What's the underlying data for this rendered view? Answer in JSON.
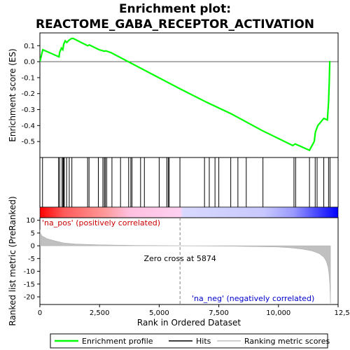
{
  "chart_data": {
    "type": "line",
    "title": "Enrichment plot:",
    "subtitle": "REACTOME_GABA_RECEPTOR_ACTIVATION",
    "top_panel": {
      "ylabel": "Enrichment score (ES)",
      "ylim": [
        -0.6,
        0.18
      ],
      "yticks": [
        0.1,
        0.0,
        -0.1,
        -0.2,
        -0.3,
        -0.4,
        -0.5
      ],
      "ytick_labels": [
        "0.1",
        "0.0",
        "-0.1",
        "-0.2",
        "-0.3",
        "-0.4",
        "-0.5"
      ],
      "series": [
        {
          "name": "Enrichment profile",
          "color": "#00ff00",
          "x": [
            0,
            120,
            800,
            830,
            900,
            960,
            1000,
            1060,
            1130,
            1220,
            1330,
            1400,
            2000,
            2070,
            2480,
            2640,
            2700,
            2760,
            2800,
            3000,
            5874,
            7000,
            8000,
            9300,
            10600,
            10700,
            11300,
            11500,
            11550,
            11650,
            11900,
            12050,
            12100,
            12130,
            12150,
            12180
          ],
          "y": [
            0.0,
            0.075,
            0.03,
            0.06,
            0.085,
            0.075,
            0.11,
            0.13,
            0.12,
            0.135,
            0.145,
            0.145,
            0.1,
            0.105,
            0.075,
            0.068,
            0.065,
            0.068,
            0.066,
            0.055,
            -0.17,
            -0.255,
            -0.325,
            -0.43,
            -0.525,
            -0.515,
            -0.555,
            -0.5,
            -0.44,
            -0.4,
            -0.355,
            -0.365,
            -0.25,
            -0.125,
            0.0,
            0.0
          ]
        }
      ]
    },
    "hits": {
      "name": "Hits",
      "positions": [
        110,
        780,
        830,
        930,
        970,
        1000,
        1020,
        1120,
        1230,
        1340,
        2000,
        2060,
        2450,
        2640,
        2700,
        2740,
        2800,
        3020,
        3380,
        3720,
        3810,
        3860,
        4220,
        4380,
        5000,
        5320,
        5380,
        5420,
        5870,
        6900,
        7100,
        7340,
        7500,
        8000,
        8300,
        8650,
        9350,
        10650,
        10720,
        11300,
        11540,
        11620,
        11900,
        12100,
        12160
      ]
    },
    "bottom_panel": {
      "ylabel": "Ranked list metric (PreRanked)",
      "xlabel": "Rank in Ordered Dataset",
      "ylim": [
        -23,
        11
      ],
      "yticks": [
        10,
        5,
        0,
        -5,
        -10,
        -15,
        -20
      ],
      "ytick_labels": [
        "10",
        "5",
        "0",
        "-5",
        "-10",
        "-15",
        "-20"
      ],
      "xlim": [
        0,
        12500
      ],
      "xticks": [
        0,
        2500,
        5000,
        7500,
        10000,
        12500
      ],
      "xtick_labels": [
        "0",
        "2,500",
        "5,000",
        "7,500",
        "10,000",
        "12,500"
      ],
      "series": [
        {
          "name": "Ranking metric scores",
          "color": "#c0c0c0",
          "x": [
            0,
            30,
            100,
            300,
            600,
            1000,
            1500,
            2500,
            4000,
            5874,
            8000,
            10000,
            10500,
            11000,
            11400,
            11700,
            11900,
            12000,
            12080,
            12120,
            12150,
            12170,
            12180
          ],
          "y": [
            6.3,
            4.8,
            3.8,
            2.8,
            2.0,
            1.1,
            0.7,
            0.4,
            0.15,
            0.0,
            -0.15,
            -0.5,
            -0.8,
            -1.3,
            -2.0,
            -3.0,
            -4.5,
            -6.0,
            -8.5,
            -11.0,
            -15.0,
            -20.0,
            -22.5
          ]
        }
      ],
      "annotations": {
        "zero_cross": "Zero cross at 5874",
        "zero_cross_rank": 5874,
        "pos_label": "'na_pos' (positively correlated)",
        "neg_label": "'na_neg' (negatively correlated)"
      }
    },
    "colors": {
      "pos": "#ff0000",
      "neg": "#0000ff",
      "pos_label": "#cc0000",
      "neg_label": "#0000cc",
      "zero_line": "#808080"
    },
    "legend": {
      "placement": "bottom",
      "entries": [
        {
          "label": "Enrichment profile",
          "color": "#00ff00"
        },
        {
          "label": "Hits",
          "color": "#000000"
        },
        {
          "label": "Ranking metric scores",
          "color": "#c0c0c0"
        }
      ]
    }
  }
}
